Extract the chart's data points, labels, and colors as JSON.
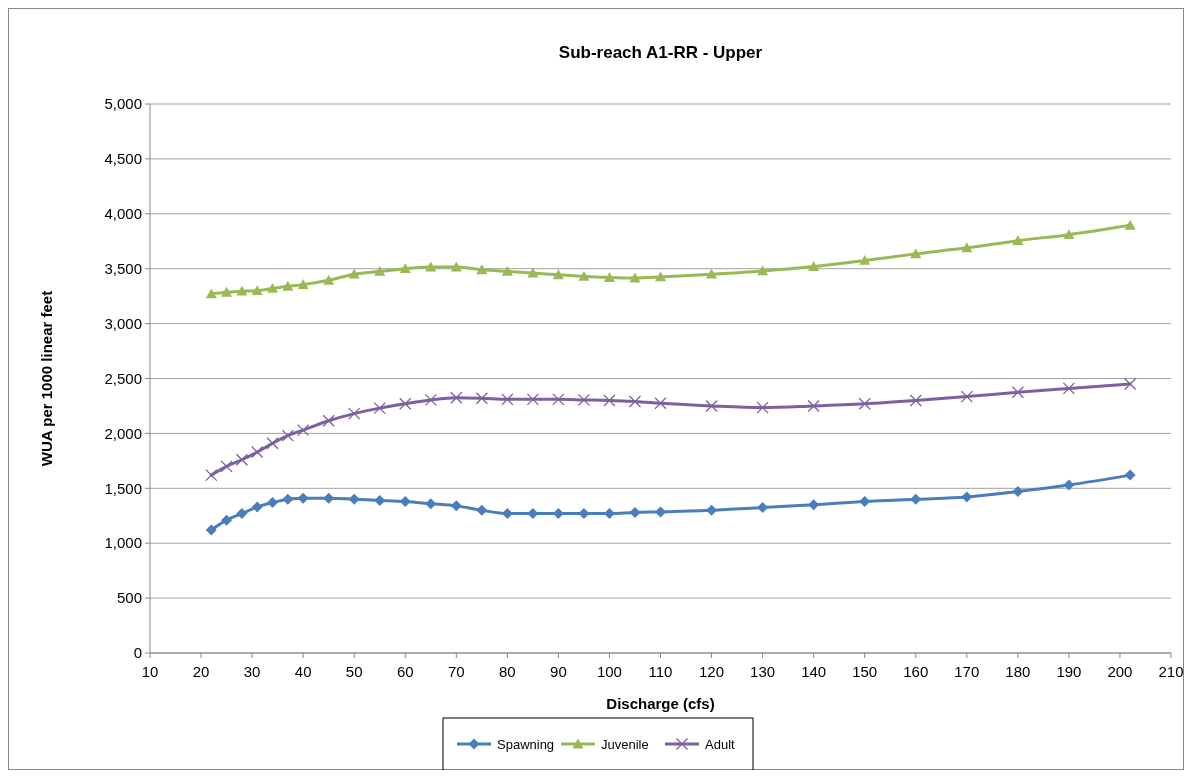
{
  "chart_data": {
    "type": "line",
    "title": "Sub-reach A1-RR - Upper",
    "xlabel": "Discharge (cfs)",
    "ylabel": "WUA per 1000 linear feet",
    "x": [
      22,
      25,
      28,
      31,
      34,
      37,
      40,
      45,
      50,
      55,
      60,
      65,
      70,
      75,
      80,
      85,
      90,
      95,
      100,
      105,
      110,
      120,
      130,
      140,
      150,
      160,
      170,
      180,
      190,
      202
    ],
    "series": [
      {
        "name": "Spawning",
        "color": "#4a7ebb",
        "marker": "diamond",
        "values": [
          1120,
          1210,
          1270,
          1330,
          1370,
          1400,
          1410,
          1410,
          1400,
          1390,
          1380,
          1360,
          1340,
          1300,
          1270,
          1270,
          1270,
          1270,
          1270,
          1280,
          1285,
          1300,
          1325,
          1350,
          1380,
          1400,
          1420,
          1470,
          1530,
          1620
        ]
      },
      {
        "name": "Juvenile",
        "color": "#98b954",
        "marker": "triangle",
        "values": [
          3270,
          3285,
          3295,
          3300,
          3320,
          3340,
          3355,
          3395,
          3450,
          3475,
          3500,
          3515,
          3515,
          3490,
          3475,
          3460,
          3445,
          3430,
          3420,
          3415,
          3425,
          3450,
          3480,
          3520,
          3575,
          3635,
          3690,
          3755,
          3810,
          3895
        ]
      },
      {
        "name": "Adult",
        "color": "#7d60a0",
        "marker": "cross",
        "values": [
          1620,
          1700,
          1760,
          1830,
          1910,
          1980,
          2030,
          2115,
          2180,
          2230,
          2270,
          2305,
          2325,
          2320,
          2310,
          2310,
          2310,
          2305,
          2300,
          2290,
          2275,
          2250,
          2235,
          2250,
          2270,
          2300,
          2335,
          2375,
          2410,
          2450
        ]
      }
    ],
    "xlim": [
      10,
      210
    ],
    "xticks": [
      10,
      20,
      30,
      40,
      50,
      60,
      70,
      80,
      90,
      100,
      110,
      120,
      130,
      140,
      150,
      160,
      170,
      180,
      190,
      200,
      210
    ],
    "ylim": [
      0,
      5000
    ],
    "yticks": [
      {
        "value": 0,
        "label": "0"
      },
      {
        "value": 500,
        "label": "500"
      },
      {
        "value": 1000,
        "label": "1,000"
      },
      {
        "value": 1500,
        "label": "1,500"
      },
      {
        "value": 2000,
        "label": "2,000"
      },
      {
        "value": 2500,
        "label": "2,500"
      },
      {
        "value": 3000,
        "label": "3,000"
      },
      {
        "value": 3500,
        "label": "3,500"
      },
      {
        "value": 4000,
        "label": "4,000"
      },
      {
        "value": 4500,
        "label": "4,500"
      },
      {
        "value": 5000,
        "label": "5,000"
      }
    ],
    "grid": "y",
    "legend": "bottom",
    "line_style": "solid"
  }
}
